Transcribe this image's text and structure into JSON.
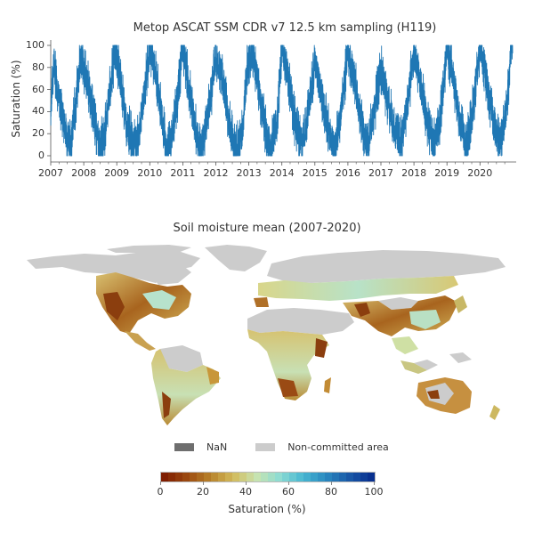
{
  "timeseries": {
    "title": "Metop ASCAT SSM CDR v7 12.5 km sampling (H119)",
    "ylabel": "Saturation (%)",
    "yticks": [
      "0",
      "20",
      "40",
      "60",
      "80",
      "100"
    ],
    "xticks": [
      "2007",
      "2008",
      "2009",
      "2010",
      "2011",
      "2012",
      "2013",
      "2014",
      "2015",
      "2016",
      "2017",
      "2018",
      "2019",
      "2020"
    ],
    "line_color": "#1f77b4"
  },
  "map": {
    "title": "Soil moisture mean (2007-2020)",
    "legend": [
      {
        "label": "NaN",
        "color": "#6e6e6e"
      },
      {
        "label": "Non-committed area",
        "color": "#cccccc"
      }
    ],
    "colorbar": {
      "label": "Saturation (%)",
      "ticks": [
        "0",
        "20",
        "40",
        "60",
        "80",
        "100"
      ],
      "colors": [
        "#7f1d00",
        "#9c4a10",
        "#b8822a",
        "#d2bb5c",
        "#c8e3b0",
        "#8edcd2",
        "#4ab8d2",
        "#2a8ac0",
        "#1a5aa8",
        "#08308f"
      ]
    }
  },
  "chart_data": [
    {
      "type": "line",
      "title": "Metop ASCAT SSM CDR v7 12.5 km sampling (H119)",
      "xlabel": "",
      "ylabel": "Saturation (%)",
      "ylim": [
        0,
        100
      ],
      "xlim": [
        "2007-01-01",
        "2020-12-31"
      ],
      "x_ticks": [
        "2007",
        "2008",
        "2009",
        "2010",
        "2011",
        "2012",
        "2013",
        "2014",
        "2015",
        "2016",
        "2017",
        "2018",
        "2019",
        "2020"
      ],
      "y_ticks": [
        0,
        20,
        40,
        60,
        80,
        100
      ],
      "grid": false,
      "description": "Daily soil moisture time series with strong annual seasonality: winter peaks near 90-100%, summer minima near 0-15%",
      "series": [
        {
          "name": "Soil moisture",
          "color": "#1f77b4",
          "x": [
            "2007.0",
            "2007.1",
            "2007.25",
            "2007.45",
            "2007.6",
            "2007.75",
            "2007.9",
            "2008.0",
            "2008.15",
            "2008.3",
            "2008.45",
            "2008.6",
            "2008.8",
            "2008.95",
            "2009.1",
            "2009.3",
            "2009.5",
            "2009.65",
            "2009.85",
            "2010.0",
            "2010.15",
            "2010.35",
            "2010.5",
            "2010.65",
            "2010.85",
            "2011.0",
            "2011.15",
            "2011.35",
            "2011.55",
            "2011.7",
            "2011.9",
            "2012.0",
            "2012.2",
            "2012.4",
            "2012.6",
            "2012.8",
            "2012.95",
            "2013.1",
            "2013.3",
            "2013.5",
            "2013.65",
            "2013.85",
            "2014.0",
            "2014.2",
            "2014.4",
            "2014.6",
            "2014.8",
            "2015.0",
            "2015.2",
            "2015.4",
            "2015.6",
            "2015.8",
            "2016.0",
            "2016.2",
            "2016.4",
            "2016.6",
            "2016.8",
            "2017.0",
            "2017.2",
            "2017.4",
            "2017.6",
            "2017.8",
            "2018.0",
            "2018.2",
            "2018.4",
            "2018.6",
            "2018.8",
            "2019.0",
            "2019.2",
            "2019.4",
            "2019.6",
            "2019.8",
            "2020.0",
            "2020.2",
            "2020.4",
            "2020.6",
            "2020.8",
            "2020.95"
          ],
          "y": [
            45,
            85,
            50,
            25,
            10,
            45,
            90,
            80,
            60,
            35,
            10,
            15,
            60,
            95,
            70,
            30,
            10,
            15,
            60,
            100,
            80,
            40,
            5,
            15,
            55,
            100,
            70,
            30,
            5,
            25,
            65,
            95,
            70,
            30,
            5,
            20,
            80,
            95,
            60,
            25,
            5,
            30,
            100,
            70,
            30,
            10,
            40,
            85,
            55,
            25,
            5,
            40,
            95,
            70,
            30,
            10,
            40,
            80,
            50,
            25,
            10,
            45,
            95,
            65,
            30,
            10,
            35,
            100,
            70,
            30,
            10,
            45,
            100,
            70,
            30,
            10,
            40,
            100
          ]
        }
      ]
    },
    {
      "type": "heatmap",
      "title": "Soil moisture mean (2007-2020)",
      "description": "Global map of mean soil moisture saturation; arid regions (SW USA, Sahel, Horn of Africa, southern Africa, Australia, Middle East, Patagonia) brown 0-20%; humid regions (eastern US, Amazon edges, Europe, SE Asia) green-cyan 40-60%; high latitudes, deserts (Sahara, Arabia, Tibet), dense tropical forests grey = non-committed area",
      "colorbar_label": "Saturation (%)",
      "colorbar_range": [
        0,
        100
      ],
      "colorbar_ticks": [
        0,
        20,
        40,
        60,
        80,
        100
      ],
      "legend": [
        "NaN",
        "Non-committed area"
      ]
    }
  ]
}
